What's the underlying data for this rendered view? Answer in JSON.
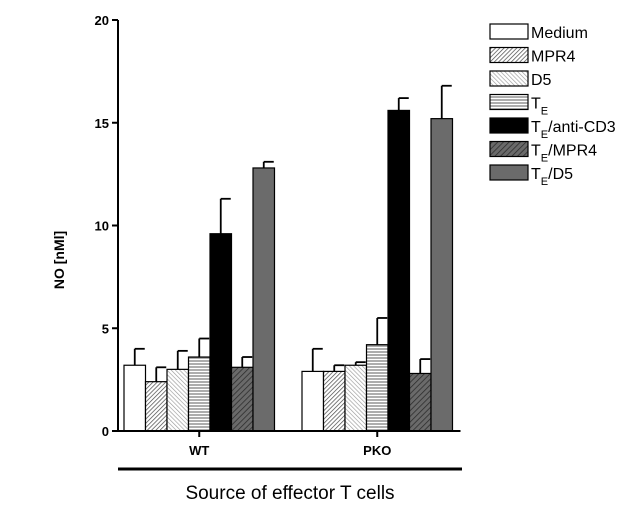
{
  "chart_data": {
    "type": "bar",
    "title": "",
    "xlabel": "Source of effector T cells",
    "ylabel": "NO [nMl]",
    "ylim": [
      0,
      20
    ],
    "yticks": [
      "0",
      "5",
      "10",
      "15",
      "20"
    ],
    "categories": [
      "WT",
      "PKO"
    ],
    "legend_position": "right",
    "series": [
      {
        "name": "Medium",
        "sub": "",
        "values": [
          3.2,
          2.9
        ],
        "errors": [
          0.8,
          1.1
        ],
        "fill": "white"
      },
      {
        "name": "MPR4",
        "sub": "",
        "values": [
          2.4,
          2.9
        ],
        "errors": [
          0.7,
          0.3
        ],
        "fill": "diag-dense"
      },
      {
        "name": "D5",
        "sub": "",
        "values": [
          3.0,
          3.2
        ],
        "errors": [
          0.9,
          0.15
        ],
        "fill": "diag-light"
      },
      {
        "name": "T",
        "sub": "E",
        "suffix": "",
        "values": [
          3.6,
          4.2
        ],
        "errors": [
          0.9,
          1.3
        ],
        "fill": "horiz"
      },
      {
        "name": "T",
        "sub": "E",
        "suffix": "/anti-CD3",
        "values": [
          9.6,
          15.6
        ],
        "errors": [
          1.7,
          0.6
        ],
        "fill": "black"
      },
      {
        "name": "T",
        "sub": "E",
        "suffix": "/MPR4",
        "values": [
          3.1,
          2.8
        ],
        "errors": [
          0.5,
          0.7
        ],
        "fill": "dark-diag"
      },
      {
        "name": "T",
        "sub": "E",
        "suffix": "/D5",
        "values": [
          12.8,
          15.2
        ],
        "errors": [
          0.3,
          1.6
        ],
        "fill": "dark-gray"
      }
    ]
  }
}
